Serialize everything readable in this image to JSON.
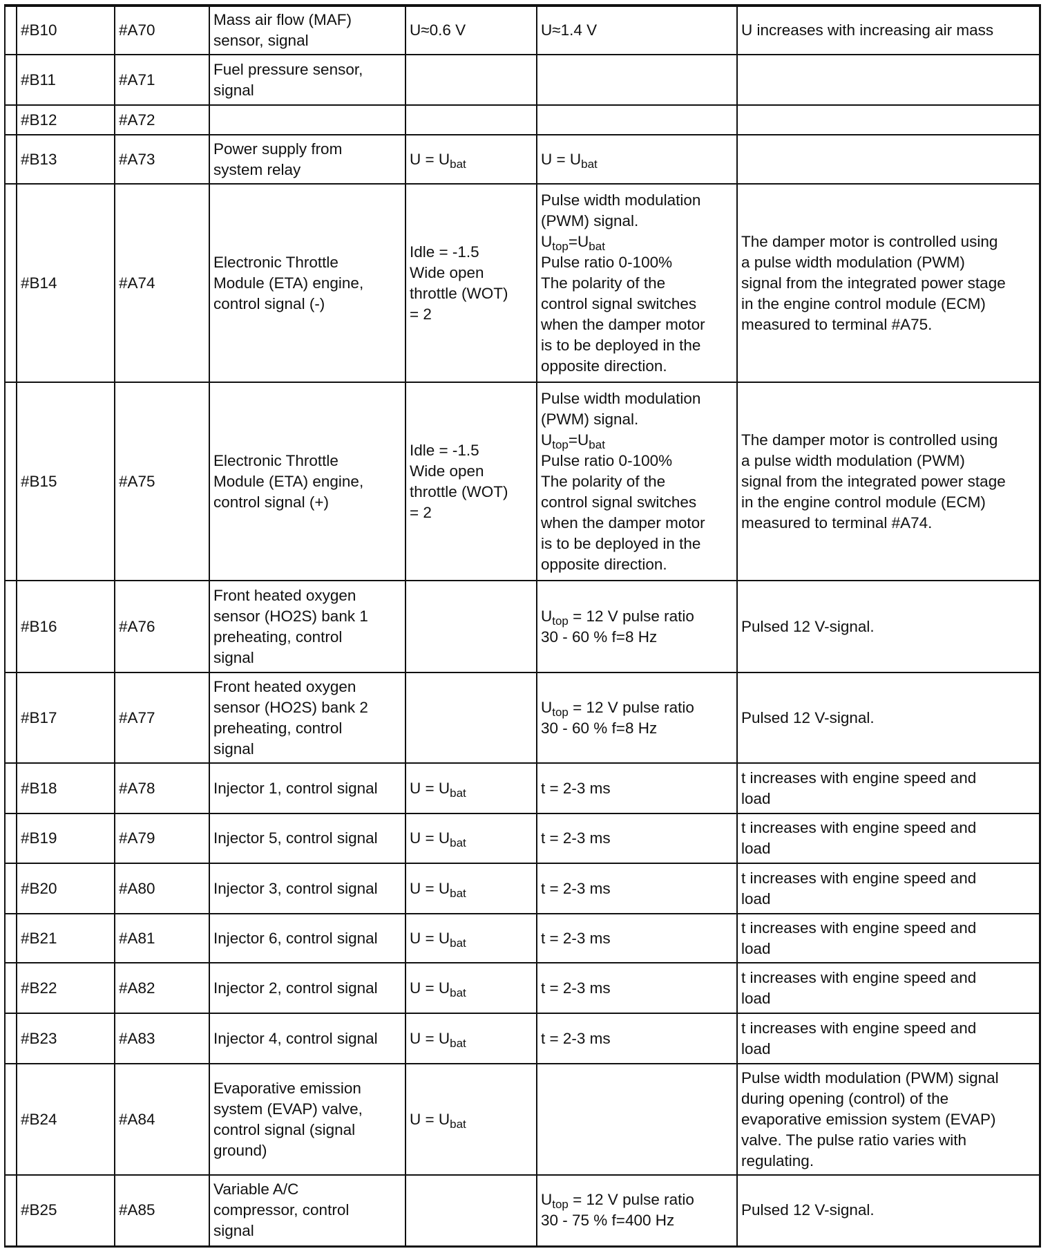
{
  "rows": [
    {
      "b": "#B10",
      "a": "#A70",
      "desc": [
        [
          "Mass air flow (MAF)"
        ],
        [
          "sensor, signal"
        ]
      ],
      "v1": [
        [
          "U≈0.6 V"
        ]
      ],
      "v2": [
        [
          "U≈1.4 V"
        ]
      ],
      "note": [
        [
          "U increases with increasing air mass"
        ]
      ]
    },
    {
      "b": "#B11",
      "a": "#A71",
      "desc": [
        [
          "Fuel pressure sensor,"
        ],
        [
          "signal"
        ]
      ],
      "v1": [],
      "v2": [],
      "note": []
    },
    {
      "b": "#B12",
      "a": "#A72",
      "desc": [],
      "v1": [],
      "v2": [],
      "note": []
    },
    {
      "b": "#B13",
      "a": "#A73",
      "desc": [
        [
          "Power supply from"
        ],
        [
          "system relay"
        ]
      ],
      "v1": [
        [
          "U = U",
          {
            "sub": "bat"
          }
        ]
      ],
      "v2": [
        [
          "U = U",
          {
            "sub": "bat"
          }
        ]
      ],
      "note": []
    },
    {
      "b": "#B14",
      "a": "#A74",
      "desc": [
        [
          "Electronic Throttle"
        ],
        [
          "Module (ETA) engine,"
        ],
        [
          "control signal (-)"
        ]
      ],
      "v1": [
        [
          "Idle = -1.5"
        ],
        [
          "Wide open"
        ],
        [
          "throttle (WOT)"
        ],
        [
          "= 2"
        ]
      ],
      "v2": [
        [
          "Pulse width modulation"
        ],
        [
          "(PWM) signal."
        ],
        [
          "U",
          {
            "sub": "top"
          },
          "=U",
          {
            "sub": "bat"
          }
        ],
        [
          "Pulse ratio 0-100%"
        ],
        [
          "The polarity of the"
        ],
        [
          "control signal switches"
        ],
        [
          "when the damper motor"
        ],
        [
          "is to be deployed in the"
        ],
        [
          "opposite direction."
        ]
      ],
      "note": [
        [
          "The damper motor is controlled using"
        ],
        [
          "a pulse width modulation (PWM)"
        ],
        [
          "signal from the integrated power stage"
        ],
        [
          "in the engine control module (ECM)"
        ],
        [
          "measured to terminal #A75."
        ]
      ]
    },
    {
      "b": "#B15",
      "a": "#A75",
      "desc": [
        [
          "Electronic Throttle"
        ],
        [
          "Module (ETA) engine,"
        ],
        [
          "control signal (+)"
        ]
      ],
      "v1": [
        [
          "Idle = -1.5"
        ],
        [
          "Wide open"
        ],
        [
          "throttle (WOT)"
        ],
        [
          "= 2"
        ]
      ],
      "v2": [
        [
          "Pulse width modulation"
        ],
        [
          "(PWM) signal."
        ],
        [
          "U",
          {
            "sub": "top"
          },
          "=U",
          {
            "sub": "bat"
          }
        ],
        [
          "Pulse ratio 0-100%"
        ],
        [
          "The polarity of the"
        ],
        [
          "control signal switches"
        ],
        [
          "when the damper motor"
        ],
        [
          "is to be deployed in the"
        ],
        [
          "opposite direction."
        ]
      ],
      "note": [
        [
          "The damper motor is controlled using"
        ],
        [
          "a pulse width modulation (PWM)"
        ],
        [
          "signal from the integrated power stage"
        ],
        [
          "in the engine control module (ECM)"
        ],
        [
          "measured to terminal #A74."
        ]
      ]
    },
    {
      "b": "#B16",
      "a": "#A76",
      "desc": [
        [
          "Front heated oxygen"
        ],
        [
          "sensor (HO2S) bank 1"
        ],
        [
          "preheating, control"
        ],
        [
          "signal"
        ]
      ],
      "v1": [],
      "v2": [
        [
          "U",
          {
            "sub": "top"
          },
          " = 12 V pulse ratio"
        ],
        [
          "30 - 60 % f=8 Hz"
        ]
      ],
      "note": [
        [
          "Pulsed 12 V-signal."
        ]
      ]
    },
    {
      "b": "#B17",
      "a": "#A77",
      "desc": [
        [
          "Front heated oxygen"
        ],
        [
          "sensor (HO2S) bank 2"
        ],
        [
          "preheating, control"
        ],
        [
          "signal"
        ]
      ],
      "v1": [],
      "v2": [
        [
          "U",
          {
            "sub": "top"
          },
          " = 12 V pulse ratio"
        ],
        [
          "30 - 60 % f=8 Hz"
        ]
      ],
      "note": [
        [
          "Pulsed 12 V-signal."
        ]
      ]
    },
    {
      "b": "#B18",
      "a": "#A78",
      "desc": [
        [
          "Injector 1, control signal"
        ]
      ],
      "v1": [
        [
          "U = U",
          {
            "sub": "bat"
          }
        ]
      ],
      "v2": [
        [
          "t = 2-3 ms"
        ]
      ],
      "note": [
        [
          "t increases with engine speed and"
        ],
        [
          "load"
        ]
      ]
    },
    {
      "b": "#B19",
      "a": "#A79",
      "desc": [
        [
          "Injector 5, control signal"
        ]
      ],
      "v1": [
        [
          "U = U",
          {
            "sub": "bat"
          }
        ]
      ],
      "v2": [
        [
          "t = 2-3 ms"
        ]
      ],
      "note": [
        [
          "t increases with engine speed and"
        ],
        [
          "load"
        ]
      ]
    },
    {
      "b": "#B20",
      "a": "#A80",
      "desc": [
        [
          "Injector 3, control signal"
        ]
      ],
      "v1": [
        [
          "U = U",
          {
            "sub": "bat"
          }
        ]
      ],
      "v2": [
        [
          "t = 2-3 ms"
        ]
      ],
      "note": [
        [
          "t increases with engine speed and"
        ],
        [
          "load"
        ]
      ]
    },
    {
      "b": "#B21",
      "a": "#A81",
      "desc": [
        [
          "Injector 6, control signal"
        ]
      ],
      "v1": [
        [
          "U = U",
          {
            "sub": "bat"
          }
        ]
      ],
      "v2": [
        [
          "t = 2-3 ms"
        ]
      ],
      "note": [
        [
          "t increases with engine speed and"
        ],
        [
          "load"
        ]
      ]
    },
    {
      "b": "#B22",
      "a": "#A82",
      "desc": [
        [
          "Injector 2, control signal"
        ]
      ],
      "v1": [
        [
          "U = U",
          {
            "sub": "bat"
          }
        ]
      ],
      "v2": [
        [
          "t = 2-3 ms"
        ]
      ],
      "note": [
        [
          "t increases with engine speed and"
        ],
        [
          "load"
        ]
      ]
    },
    {
      "b": "#B23",
      "a": "#A83",
      "desc": [
        [
          "Injector 4, control signal"
        ]
      ],
      "v1": [
        [
          "U = U",
          {
            "sub": "bat"
          }
        ]
      ],
      "v2": [
        [
          "t = 2-3 ms"
        ]
      ],
      "note": [
        [
          "t increases with engine speed and"
        ],
        [
          "load"
        ]
      ]
    },
    {
      "b": "#B24",
      "a": "#A84",
      "desc": [
        [
          "Evaporative emission"
        ],
        [
          "system (EVAP) valve,"
        ],
        [
          "control signal (signal"
        ],
        [
          "ground)"
        ]
      ],
      "v1": [
        [
          "U = U",
          {
            "sub": "bat"
          }
        ]
      ],
      "v2": [],
      "note": [
        [
          "Pulse width modulation (PWM) signal"
        ],
        [
          "during opening (control) of the"
        ],
        [
          "evaporative emission system (EVAP)"
        ],
        [
          "valve. The pulse ratio varies with"
        ],
        [
          "regulating."
        ]
      ]
    },
    {
      "b": "#B25",
      "a": "#A85",
      "desc": [
        [
          "Variable A/C"
        ],
        [
          "compressor, control"
        ],
        [
          "signal"
        ]
      ],
      "v1": [],
      "v2": [
        [
          "U",
          {
            "sub": "top"
          },
          " = 12 V pulse ratio"
        ],
        [
          "30 - 75 % f=400 Hz"
        ]
      ],
      "note": [
        [
          "Pulsed 12 V-signal."
        ]
      ]
    }
  ]
}
